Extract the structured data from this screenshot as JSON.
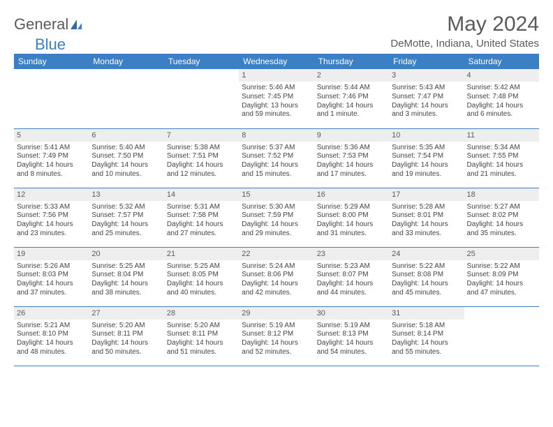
{
  "logo": {
    "text_a": "General",
    "text_b": "Blue"
  },
  "title": "May 2024",
  "location": "DeMotte, Indiana, United States",
  "colors": {
    "header_bg": "#3b7fc4",
    "header_text": "#ffffff",
    "daynum_bg": "#eeeeee",
    "text": "#444444",
    "rule": "#3b7fc4"
  },
  "day_names": [
    "Sunday",
    "Monday",
    "Tuesday",
    "Wednesday",
    "Thursday",
    "Friday",
    "Saturday"
  ],
  "weeks": [
    [
      null,
      null,
      null,
      {
        "n": "1",
        "sr": "Sunrise: 5:46 AM",
        "ss": "Sunset: 7:45 PM",
        "dl": "Daylight: 13 hours and 59 minutes."
      },
      {
        "n": "2",
        "sr": "Sunrise: 5:44 AM",
        "ss": "Sunset: 7:46 PM",
        "dl": "Daylight: 14 hours and 1 minute."
      },
      {
        "n": "3",
        "sr": "Sunrise: 5:43 AM",
        "ss": "Sunset: 7:47 PM",
        "dl": "Daylight: 14 hours and 3 minutes."
      },
      {
        "n": "4",
        "sr": "Sunrise: 5:42 AM",
        "ss": "Sunset: 7:48 PM",
        "dl": "Daylight: 14 hours and 6 minutes."
      }
    ],
    [
      {
        "n": "5",
        "sr": "Sunrise: 5:41 AM",
        "ss": "Sunset: 7:49 PM",
        "dl": "Daylight: 14 hours and 8 minutes."
      },
      {
        "n": "6",
        "sr": "Sunrise: 5:40 AM",
        "ss": "Sunset: 7:50 PM",
        "dl": "Daylight: 14 hours and 10 minutes."
      },
      {
        "n": "7",
        "sr": "Sunrise: 5:38 AM",
        "ss": "Sunset: 7:51 PM",
        "dl": "Daylight: 14 hours and 12 minutes."
      },
      {
        "n": "8",
        "sr": "Sunrise: 5:37 AM",
        "ss": "Sunset: 7:52 PM",
        "dl": "Daylight: 14 hours and 15 minutes."
      },
      {
        "n": "9",
        "sr": "Sunrise: 5:36 AM",
        "ss": "Sunset: 7:53 PM",
        "dl": "Daylight: 14 hours and 17 minutes."
      },
      {
        "n": "10",
        "sr": "Sunrise: 5:35 AM",
        "ss": "Sunset: 7:54 PM",
        "dl": "Daylight: 14 hours and 19 minutes."
      },
      {
        "n": "11",
        "sr": "Sunrise: 5:34 AM",
        "ss": "Sunset: 7:55 PM",
        "dl": "Daylight: 14 hours and 21 minutes."
      }
    ],
    [
      {
        "n": "12",
        "sr": "Sunrise: 5:33 AM",
        "ss": "Sunset: 7:56 PM",
        "dl": "Daylight: 14 hours and 23 minutes."
      },
      {
        "n": "13",
        "sr": "Sunrise: 5:32 AM",
        "ss": "Sunset: 7:57 PM",
        "dl": "Daylight: 14 hours and 25 minutes."
      },
      {
        "n": "14",
        "sr": "Sunrise: 5:31 AM",
        "ss": "Sunset: 7:58 PM",
        "dl": "Daylight: 14 hours and 27 minutes."
      },
      {
        "n": "15",
        "sr": "Sunrise: 5:30 AM",
        "ss": "Sunset: 7:59 PM",
        "dl": "Daylight: 14 hours and 29 minutes."
      },
      {
        "n": "16",
        "sr": "Sunrise: 5:29 AM",
        "ss": "Sunset: 8:00 PM",
        "dl": "Daylight: 14 hours and 31 minutes."
      },
      {
        "n": "17",
        "sr": "Sunrise: 5:28 AM",
        "ss": "Sunset: 8:01 PM",
        "dl": "Daylight: 14 hours and 33 minutes."
      },
      {
        "n": "18",
        "sr": "Sunrise: 5:27 AM",
        "ss": "Sunset: 8:02 PM",
        "dl": "Daylight: 14 hours and 35 minutes."
      }
    ],
    [
      {
        "n": "19",
        "sr": "Sunrise: 5:26 AM",
        "ss": "Sunset: 8:03 PM",
        "dl": "Daylight: 14 hours and 37 minutes."
      },
      {
        "n": "20",
        "sr": "Sunrise: 5:25 AM",
        "ss": "Sunset: 8:04 PM",
        "dl": "Daylight: 14 hours and 38 minutes."
      },
      {
        "n": "21",
        "sr": "Sunrise: 5:25 AM",
        "ss": "Sunset: 8:05 PM",
        "dl": "Daylight: 14 hours and 40 minutes."
      },
      {
        "n": "22",
        "sr": "Sunrise: 5:24 AM",
        "ss": "Sunset: 8:06 PM",
        "dl": "Daylight: 14 hours and 42 minutes."
      },
      {
        "n": "23",
        "sr": "Sunrise: 5:23 AM",
        "ss": "Sunset: 8:07 PM",
        "dl": "Daylight: 14 hours and 44 minutes."
      },
      {
        "n": "24",
        "sr": "Sunrise: 5:22 AM",
        "ss": "Sunset: 8:08 PM",
        "dl": "Daylight: 14 hours and 45 minutes."
      },
      {
        "n": "25",
        "sr": "Sunrise: 5:22 AM",
        "ss": "Sunset: 8:09 PM",
        "dl": "Daylight: 14 hours and 47 minutes."
      }
    ],
    [
      {
        "n": "26",
        "sr": "Sunrise: 5:21 AM",
        "ss": "Sunset: 8:10 PM",
        "dl": "Daylight: 14 hours and 48 minutes."
      },
      {
        "n": "27",
        "sr": "Sunrise: 5:20 AM",
        "ss": "Sunset: 8:11 PM",
        "dl": "Daylight: 14 hours and 50 minutes."
      },
      {
        "n": "28",
        "sr": "Sunrise: 5:20 AM",
        "ss": "Sunset: 8:11 PM",
        "dl": "Daylight: 14 hours and 51 minutes."
      },
      {
        "n": "29",
        "sr": "Sunrise: 5:19 AM",
        "ss": "Sunset: 8:12 PM",
        "dl": "Daylight: 14 hours and 52 minutes."
      },
      {
        "n": "30",
        "sr": "Sunrise: 5:19 AM",
        "ss": "Sunset: 8:13 PM",
        "dl": "Daylight: 14 hours and 54 minutes."
      },
      {
        "n": "31",
        "sr": "Sunrise: 5:18 AM",
        "ss": "Sunset: 8:14 PM",
        "dl": "Daylight: 14 hours and 55 minutes."
      },
      null
    ]
  ]
}
